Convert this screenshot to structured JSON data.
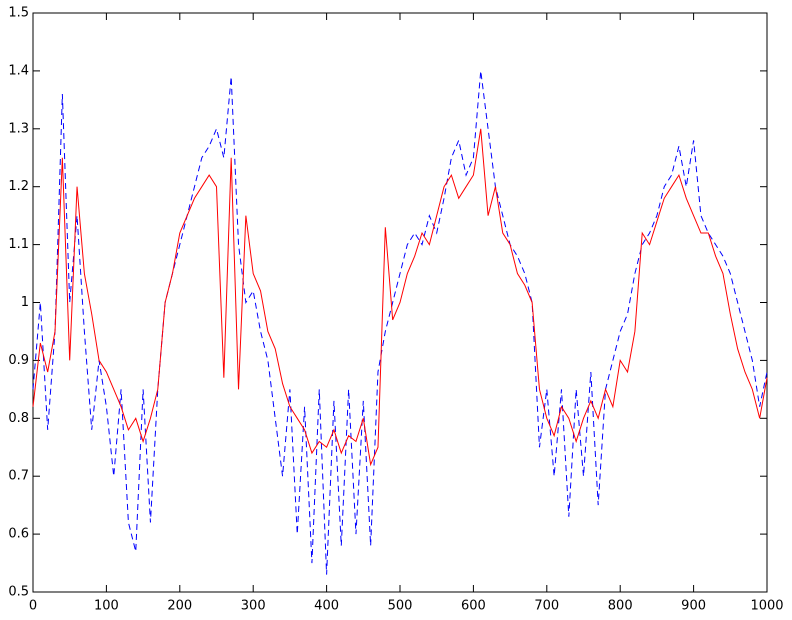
{
  "chart_data": {
    "type": "line",
    "x": [
      0,
      10,
      20,
      30,
      40,
      50,
      60,
      70,
      80,
      90,
      100,
      110,
      120,
      130,
      140,
      150,
      160,
      170,
      180,
      190,
      200,
      210,
      220,
      230,
      240,
      250,
      260,
      270,
      280,
      290,
      300,
      310,
      320,
      330,
      340,
      350,
      360,
      370,
      380,
      390,
      400,
      410,
      420,
      430,
      440,
      450,
      460,
      470,
      480,
      490,
      500,
      510,
      520,
      530,
      540,
      550,
      560,
      570,
      580,
      590,
      600,
      610,
      620,
      630,
      640,
      650,
      660,
      670,
      680,
      690,
      700,
      710,
      720,
      730,
      740,
      750,
      760,
      770,
      780,
      790,
      800,
      810,
      820,
      830,
      840,
      850,
      860,
      870,
      880,
      890,
      900,
      910,
      920,
      930,
      940,
      950,
      960,
      970,
      980,
      990,
      1000
    ],
    "series": [
      {
        "color": "#0000ff",
        "dash": true,
        "values": [
          0.85,
          1.0,
          0.78,
          0.95,
          1.36,
          1.0,
          1.15,
          0.95,
          0.78,
          0.9,
          0.82,
          0.7,
          0.85,
          0.62,
          0.57,
          0.85,
          0.62,
          0.85,
          1.0,
          1.05,
          1.1,
          1.15,
          1.2,
          1.25,
          1.27,
          1.3,
          1.25,
          1.39,
          1.1,
          1.0,
          1.02,
          0.95,
          0.9,
          0.8,
          0.7,
          0.85,
          0.6,
          0.82,
          0.55,
          0.85,
          0.53,
          0.83,
          0.58,
          0.85,
          0.6,
          0.83,
          0.58,
          0.88,
          0.95,
          1.0,
          1.05,
          1.1,
          1.12,
          1.1,
          1.15,
          1.12,
          1.18,
          1.25,
          1.28,
          1.22,
          1.25,
          1.4,
          1.3,
          1.2,
          1.15,
          1.1,
          1.08,
          1.05,
          1.0,
          0.75,
          0.85,
          0.7,
          0.85,
          0.63,
          0.85,
          0.7,
          0.88,
          0.65,
          0.85,
          0.9,
          0.95,
          0.98,
          1.05,
          1.1,
          1.12,
          1.15,
          1.2,
          1.22,
          1.27,
          1.2,
          1.28,
          1.15,
          1.12,
          1.1,
          1.08,
          1.05,
          1.0,
          0.95,
          0.9,
          0.82,
          0.88
        ]
      },
      {
        "color": "#ff0000",
        "dash": false,
        "values": [
          0.82,
          0.93,
          0.88,
          0.95,
          1.25,
          0.9,
          1.2,
          1.05,
          0.98,
          0.9,
          0.88,
          0.85,
          0.82,
          0.78,
          0.8,
          0.76,
          0.8,
          0.85,
          1.0,
          1.05,
          1.12,
          1.15,
          1.18,
          1.2,
          1.22,
          1.2,
          0.87,
          1.25,
          0.85,
          1.15,
          1.05,
          1.02,
          0.95,
          0.92,
          0.86,
          0.82,
          0.8,
          0.78,
          0.74,
          0.76,
          0.75,
          0.78,
          0.74,
          0.77,
          0.76,
          0.8,
          0.72,
          0.75,
          1.13,
          0.97,
          1.0,
          1.05,
          1.08,
          1.12,
          1.1,
          1.15,
          1.2,
          1.22,
          1.18,
          1.2,
          1.22,
          1.3,
          1.15,
          1.2,
          1.12,
          1.1,
          1.05,
          1.03,
          1.0,
          0.85,
          0.8,
          0.77,
          0.82,
          0.8,
          0.76,
          0.8,
          0.83,
          0.8,
          0.85,
          0.82,
          0.9,
          0.88,
          0.95,
          1.12,
          1.1,
          1.14,
          1.18,
          1.2,
          1.22,
          1.18,
          1.15,
          1.12,
          1.12,
          1.08,
          1.05,
          0.98,
          0.92,
          0.88,
          0.85,
          0.8,
          0.87
        ]
      }
    ],
    "xlim": [
      0,
      1000
    ],
    "xticks": [
      0,
      100,
      200,
      300,
      400,
      500,
      600,
      700,
      800,
      900,
      1000
    ],
    "ylim": [
      0.5,
      1.5
    ],
    "yticks": [
      0.5,
      0.6,
      0.7,
      0.8,
      0.9,
      1,
      1.1,
      1.2,
      1.3,
      1.4,
      1.5
    ],
    "grid": false
  }
}
